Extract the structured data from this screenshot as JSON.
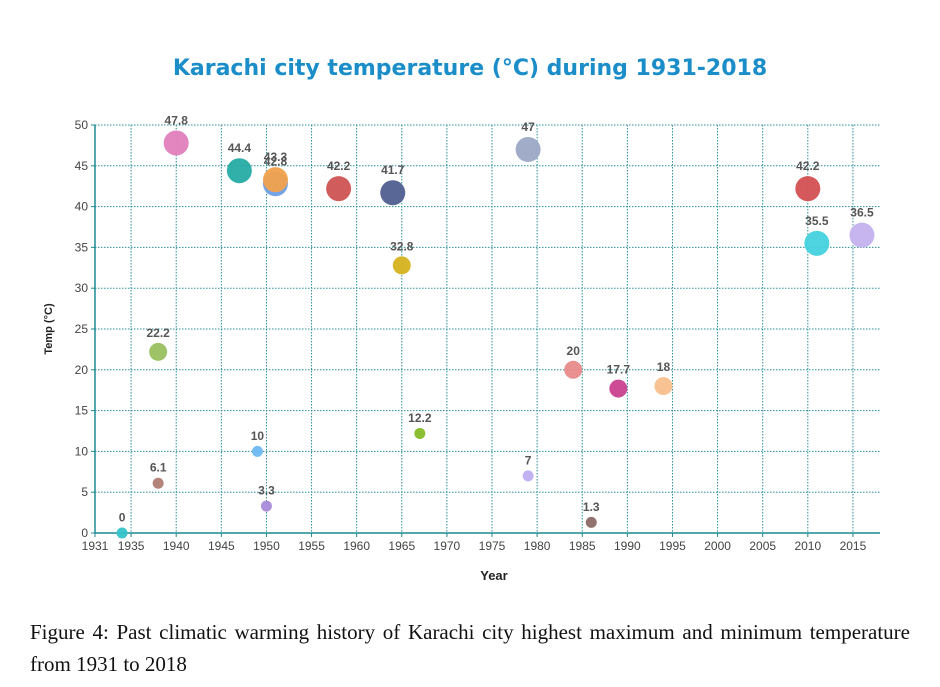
{
  "chart_data": {
    "type": "scatter",
    "title": "Karachi city temperature (°C) during 1931-2018",
    "xlabel": "Year",
    "ylabel": "Temp (°C)",
    "xlim": [
      1931,
      2018
    ],
    "ylim": [
      0,
      50
    ],
    "x_ticks": [
      "1931",
      "1935",
      "1940",
      "1945",
      "1950",
      "1955",
      "1960",
      "1965",
      "1970",
      "1975",
      "1980",
      "1985",
      "1990",
      "1995",
      "2000",
      "2005",
      "2010",
      "2015"
    ],
    "y_ticks": [
      "0",
      "5",
      "10",
      "15",
      "20",
      "25",
      "30",
      "35",
      "40",
      "45",
      "50"
    ],
    "grid": true,
    "points": [
      {
        "x": 1934,
        "y": 0,
        "label": "0",
        "color": "#35c2c9",
        "size": "small"
      },
      {
        "x": 1938,
        "y": 6.1,
        "label": "6.1",
        "color": "#b07c72",
        "size": "small"
      },
      {
        "x": 1938,
        "y": 22.2,
        "label": "22.2",
        "color": "#98c05e",
        "size": "medium"
      },
      {
        "x": 1940,
        "y": 47.8,
        "label": "47.8",
        "color": "#e27fbd",
        "size": "large"
      },
      {
        "x": 1947,
        "y": 44.4,
        "label": "44.4",
        "color": "#26aba4",
        "size": "large"
      },
      {
        "x": 1949,
        "y": 10,
        "label": "10",
        "color": "#6db8f2",
        "size": "small"
      },
      {
        "x": 1950,
        "y": 3.3,
        "label": "3.3",
        "color": "#a98ad8",
        "size": "small"
      },
      {
        "x": 1951,
        "y": 42.8,
        "label": "42.8",
        "color": "#6d9ee6",
        "size": "large"
      },
      {
        "x": 1951,
        "y": 43.3,
        "label": "43.3",
        "color": "#f2a24c",
        "size": "large"
      },
      {
        "x": 1958,
        "y": 42.2,
        "label": "42.2",
        "color": "#cf5353",
        "size": "large"
      },
      {
        "x": 1964,
        "y": 41.7,
        "label": "41.7",
        "color": "#4f5f8f",
        "size": "large"
      },
      {
        "x": 1965,
        "y": 32.8,
        "label": "32.8",
        "color": "#d6b21f",
        "size": "medium"
      },
      {
        "x": 1967,
        "y": 12.2,
        "label": "12.2",
        "color": "#86ba26",
        "size": "small"
      },
      {
        "x": 1979,
        "y": 47,
        "label": "47",
        "color": "#9ca8c5",
        "size": "large"
      },
      {
        "x": 1979,
        "y": 7,
        "label": "7",
        "color": "#c0aef0",
        "size": "small"
      },
      {
        "x": 1984,
        "y": 20,
        "label": "20",
        "color": "#e88a8a",
        "size": "medium"
      },
      {
        "x": 1986,
        "y": 1.3,
        "label": "1.3",
        "color": "#8c6a66",
        "size": "small"
      },
      {
        "x": 1989,
        "y": 17.7,
        "label": "17.7",
        "color": "#c9418e",
        "size": "medium"
      },
      {
        "x": 1994,
        "y": 18,
        "label": "18",
        "color": "#f8bf8c",
        "size": "medium"
      },
      {
        "x": 2010,
        "y": 42.2,
        "label": "42.2",
        "color": "#d34f52",
        "size": "large"
      },
      {
        "x": 2011,
        "y": 35.5,
        "label": "35.5",
        "color": "#45d2de",
        "size": "large"
      },
      {
        "x": 2016,
        "y": 36.5,
        "label": "36.5",
        "color": "#c4b1ee",
        "size": "large"
      }
    ]
  },
  "caption": "Figure 4: Past climatic warming history of Karachi city highest maximum and minimum temperature from 1931 to 2018",
  "colors": {
    "title": "#1b8ec9",
    "axis": "#1d8a93",
    "grid": "#2a8f9a"
  }
}
